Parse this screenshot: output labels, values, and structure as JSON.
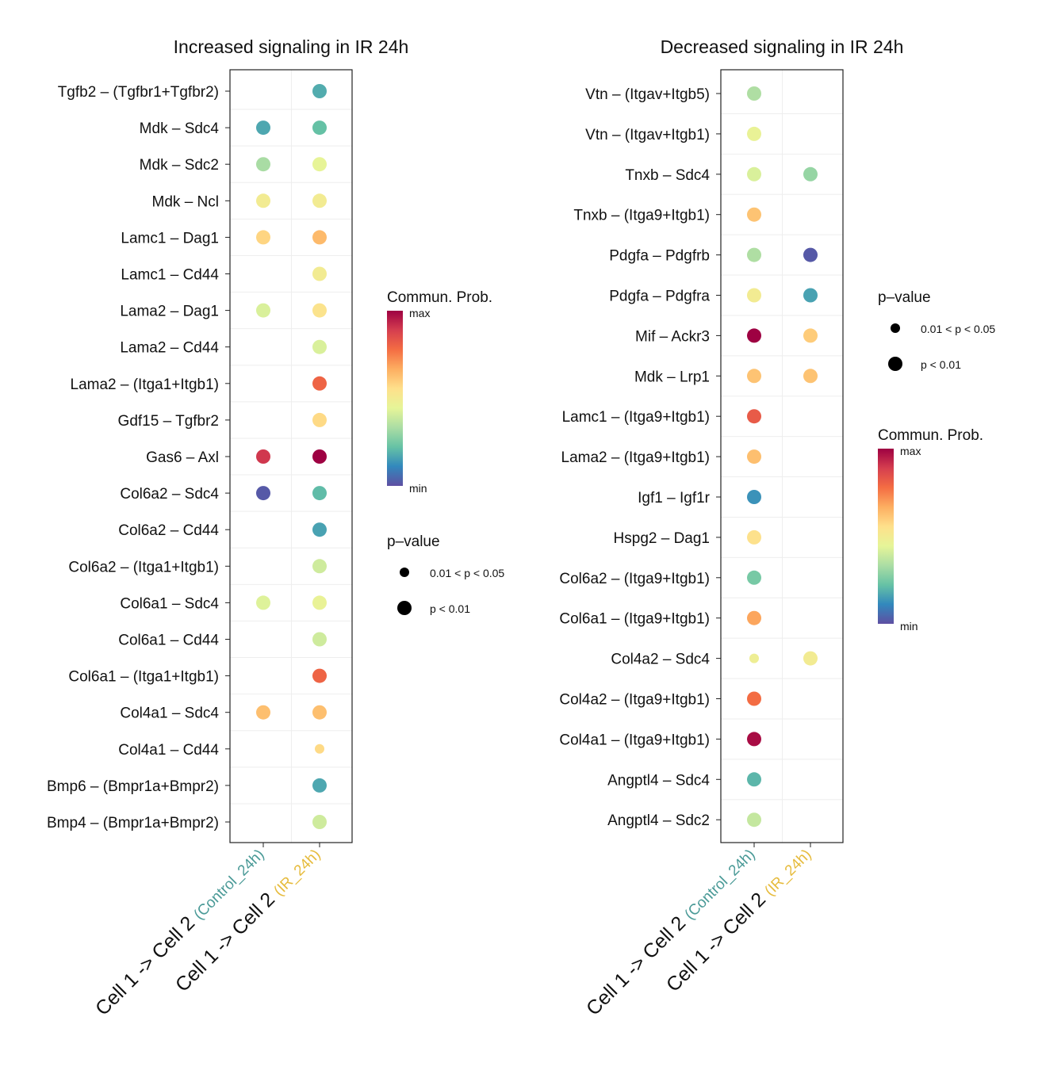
{
  "colors": {
    "control": "#4a9a97",
    "ir": "#e6bb3c",
    "scale": [
      "#5e4fa2",
      "#3288bd",
      "#66c2a5",
      "#abdda4",
      "#e6f598",
      "#fee08b",
      "#fdae61",
      "#f46d43",
      "#d53e4f",
      "#9e0142"
    ]
  },
  "chart_data": [
    {
      "type": "dotplot",
      "title": "Increased signaling in IR 24h",
      "categories": [
        "Cell 1 -> Cell 2",
        "Cell 1 -> Cell 2"
      ],
      "category_groups": [
        "(Control_24h)",
        "(IR_24h)"
      ],
      "rows": [
        {
          "label": "Tgfb2  – (Tgfbr1+Tgfbr2)",
          "values": [
            null,
            0.18
          ],
          "pvalue": [
            null,
            "<0.01"
          ]
        },
        {
          "label": "Mdk  – Sdc4",
          "values": [
            0.17,
            0.22
          ],
          "pvalue": [
            "<0.01",
            "<0.01"
          ]
        },
        {
          "label": "Mdk  – Sdc2",
          "values": [
            0.33,
            0.45
          ],
          "pvalue": [
            "<0.01",
            "<0.01"
          ]
        },
        {
          "label": "Mdk  – Ncl",
          "values": [
            0.5,
            0.5
          ],
          "pvalue": [
            "<0.01",
            "<0.01"
          ]
        },
        {
          "label": "Lamc1  – Dag1",
          "values": [
            0.58,
            0.64
          ],
          "pvalue": [
            "<0.01",
            "<0.01"
          ]
        },
        {
          "label": "Lamc1  – Cd44",
          "values": [
            null,
            0.5
          ],
          "pvalue": [
            null,
            "<0.01"
          ]
        },
        {
          "label": "Lama2  – Dag1",
          "values": [
            0.42,
            0.54
          ],
          "pvalue": [
            "<0.01",
            "<0.01"
          ]
        },
        {
          "label": "Lama2  – Cd44",
          "values": [
            null,
            0.42
          ],
          "pvalue": [
            null,
            "<0.01"
          ]
        },
        {
          "label": "Lama2  – (Itga1+Itgb1)",
          "values": [
            null,
            0.8
          ],
          "pvalue": [
            null,
            "<0.01"
          ]
        },
        {
          "label": "Gdf15  – Tgfbr2",
          "values": [
            null,
            0.57
          ],
          "pvalue": [
            null,
            "<0.01"
          ]
        },
        {
          "label": "Gas6  – Axl",
          "values": [
            0.9,
            1.0
          ],
          "pvalue": [
            "<0.01",
            "<0.01"
          ]
        },
        {
          "label": "Col6a2  – Sdc4",
          "values": [
            0.02,
            0.21
          ],
          "pvalue": [
            "<0.01",
            "<0.01"
          ]
        },
        {
          "label": "Col6a2  – Cd44",
          "values": [
            null,
            0.16
          ],
          "pvalue": [
            null,
            "<0.01"
          ]
        },
        {
          "label": "Col6a2  – (Itga1+Itgb1)",
          "values": [
            null,
            0.4
          ],
          "pvalue": [
            null,
            "<0.01"
          ]
        },
        {
          "label": "Col6a1  – Sdc4",
          "values": [
            0.43,
            0.46
          ],
          "pvalue": [
            "<0.01",
            "<0.01"
          ]
        },
        {
          "label": "Col6a1  – Cd44",
          "values": [
            null,
            0.4
          ],
          "pvalue": [
            null,
            "<0.01"
          ]
        },
        {
          "label": "Col6a1  – (Itga1+Itgb1)",
          "values": [
            null,
            0.8
          ],
          "pvalue": [
            null,
            "<0.01"
          ]
        },
        {
          "label": "Col4a1  – Sdc4",
          "values": [
            0.63,
            0.63
          ],
          "pvalue": [
            "<0.01",
            "<0.01"
          ]
        },
        {
          "label": "Col4a1  – Cd44",
          "values": [
            null,
            0.57
          ],
          "pvalue": [
            null,
            "0.01 < p < 0.05"
          ]
        },
        {
          "label": "Bmp6  – (Bmpr1a+Bmpr2)",
          "values": [
            null,
            0.17
          ],
          "pvalue": [
            null,
            "<0.01"
          ]
        },
        {
          "label": "Bmp4  – (Bmpr1a+Bmpr2)",
          "values": [
            null,
            0.4
          ],
          "pvalue": [
            null,
            "<0.01"
          ]
        }
      ],
      "legend_color": {
        "title": "Commun. Prob.",
        "max": "max",
        "min": "min"
      },
      "legend_size": {
        "title": "p–value",
        "entries": [
          "0.01 < p < 0.05",
          "p < 0.01"
        ]
      }
    },
    {
      "type": "dotplot",
      "title": "Decreased signaling in IR 24h",
      "categories": [
        "Cell 1 -> Cell 2",
        "Cell 1 -> Cell 2"
      ],
      "category_groups": [
        "(Control_24h)",
        "(IR_24h)"
      ],
      "rows": [
        {
          "label": "Vtn  – (Itgav+Itgb5)",
          "values": [
            0.34,
            null
          ],
          "pvalue": [
            "<0.01",
            null
          ]
        },
        {
          "label": "Vtn  – (Itgav+Itgb1)",
          "values": [
            0.46,
            null
          ],
          "pvalue": [
            "<0.01",
            null
          ]
        },
        {
          "label": "Tnxb  – Sdc4",
          "values": [
            0.42,
            0.3
          ],
          "pvalue": [
            "<0.01",
            "<0.01"
          ]
        },
        {
          "label": "Tnxb  – (Itga9+Itgb1)",
          "values": [
            0.62,
            null
          ],
          "pvalue": [
            "<0.01",
            null
          ]
        },
        {
          "label": "Pdgfa  – Pdgfrb",
          "values": [
            0.34,
            0.02
          ],
          "pvalue": [
            "<0.01",
            "<0.01"
          ]
        },
        {
          "label": "Pdgfa  – Pdgfra",
          "values": [
            0.5,
            0.16
          ],
          "pvalue": [
            "<0.01",
            "<0.01"
          ]
        },
        {
          "label": "Mif  – Ackr3",
          "values": [
            1.0,
            0.6
          ],
          "pvalue": [
            "<0.01",
            "<0.01"
          ]
        },
        {
          "label": "Mdk  – Lrp1",
          "values": [
            0.62,
            0.62
          ],
          "pvalue": [
            "<0.01",
            "<0.01"
          ]
        },
        {
          "label": "Lamc1  – (Itga9+Itgb1)",
          "values": [
            0.82,
            null
          ],
          "pvalue": [
            "<0.01",
            null
          ]
        },
        {
          "label": "Lama2  – (Itga9+Itgb1)",
          "values": [
            0.63,
            null
          ],
          "pvalue": [
            "<0.01",
            null
          ]
        },
        {
          "label": "Igf1  – Igf1r",
          "values": [
            0.13,
            null
          ],
          "pvalue": [
            "<0.01",
            null
          ]
        },
        {
          "label": "Hspg2  – Dag1",
          "values": [
            0.55,
            null
          ],
          "pvalue": [
            "<0.01",
            null
          ]
        },
        {
          "label": "Col6a2  – (Itga9+Itgb1)",
          "values": [
            0.25,
            null
          ],
          "pvalue": [
            "<0.01",
            null
          ]
        },
        {
          "label": "Col6a1  – (Itga9+Itgb1)",
          "values": [
            0.68,
            null
          ],
          "pvalue": [
            "<0.01",
            null
          ]
        },
        {
          "label": "Col4a2  – Sdc4",
          "values": [
            0.48,
            0.5
          ],
          "pvalue": [
            "0.01 < p < 0.05",
            "<0.01"
          ]
        },
        {
          "label": "Col4a2  – (Itga9+Itgb1)",
          "values": [
            0.78,
            null
          ],
          "pvalue": [
            "<0.01",
            null
          ]
        },
        {
          "label": "Col4a1  – (Itga9+Itgb1)",
          "values": [
            0.98,
            null
          ],
          "pvalue": [
            "<0.01",
            null
          ]
        },
        {
          "label": "Angptl4  – Sdc4",
          "values": [
            0.2,
            null
          ],
          "pvalue": [
            "<0.01",
            null
          ]
        },
        {
          "label": "Angptl4  – Sdc2",
          "values": [
            0.38,
            null
          ],
          "pvalue": [
            "<0.01",
            null
          ]
        }
      ],
      "legend_color": {
        "title": "Commun. Prob.",
        "max": "max",
        "min": "min"
      },
      "legend_size": {
        "title": "p–value",
        "entries": [
          "0.01 < p < 0.05",
          "p < 0.01"
        ]
      }
    }
  ]
}
